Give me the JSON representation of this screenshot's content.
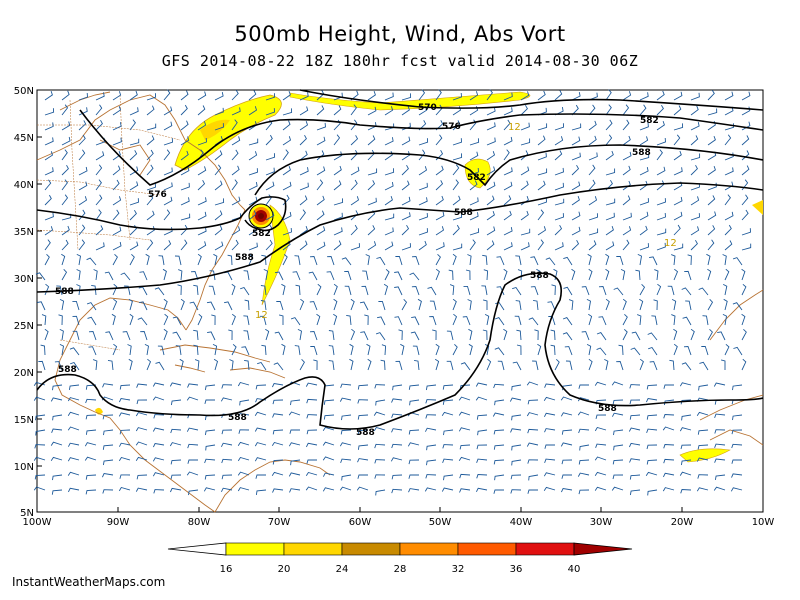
{
  "title": "500mb Height, Wind, Abs Vort",
  "subtitle": "GFS 2014-08-22 18Z 180hr fcst valid 2014-08-30 06Z",
  "lat_labels": [
    "50N",
    "45N",
    "40N",
    "35N",
    "30N",
    "25N",
    "20N",
    "15N",
    "10N",
    "5N"
  ],
  "lon_labels": [
    "100W",
    "90W",
    "80W",
    "70W",
    "60W",
    "50W",
    "40W",
    "30W",
    "20W",
    "10W"
  ],
  "contour_labels": [
    "570",
    "576",
    "582",
    "588",
    "576",
    "582",
    "582",
    "588",
    "588",
    "588",
    "588",
    "588",
    "588",
    "588",
    "588",
    "588"
  ],
  "vort_labels": [
    "12",
    "12",
    "12"
  ],
  "legend": {
    "values": [
      "16",
      "20",
      "24",
      "28",
      "32",
      "36",
      "40"
    ],
    "colors": [
      "#ffff00",
      "#ffd700",
      "#c88a00",
      "#ff8c00",
      "#ff5a00",
      "#e01010",
      "#a00000",
      "#700000"
    ]
  },
  "footer": "InstantWeatherMaps.com",
  "colors": {
    "coast": "#b87333",
    "wind": "#1e5a9a",
    "height": "#000000"
  }
}
